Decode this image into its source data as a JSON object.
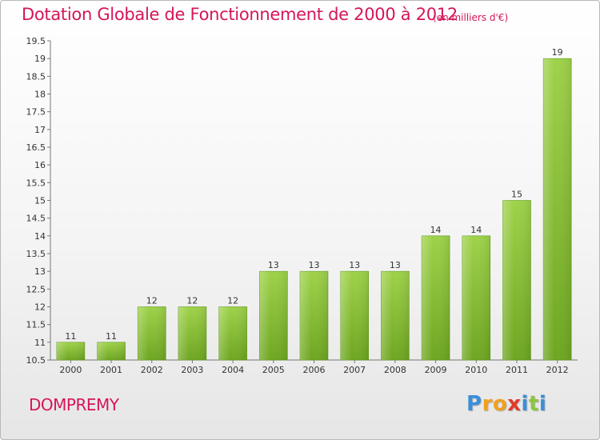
{
  "chart_data": {
    "type": "bar",
    "title": "Dotation Globale de Fonctionnement de 2000 à 2012",
    "subtitle": "(en milliers d'€)",
    "categories": [
      "2000",
      "2001",
      "2002",
      "2003",
      "2004",
      "2005",
      "2006",
      "2007",
      "2008",
      "2009",
      "2010",
      "2011",
      "2012"
    ],
    "values": [
      11,
      11,
      12,
      12,
      12,
      13,
      13,
      13,
      13,
      14,
      14,
      15,
      19
    ],
    "value_labels": [
      "11",
      "11",
      "12",
      "12",
      "12",
      "13",
      "13",
      "13",
      "13",
      "14",
      "14",
      "15",
      "19"
    ],
    "ylim": [
      10.5,
      19.5
    ],
    "yticks": [
      10.5,
      11,
      11.5,
      12,
      12.5,
      13,
      13.5,
      14,
      14.5,
      15,
      15.5,
      16,
      16.5,
      17,
      17.5,
      18,
      18.5,
      19,
      19.5
    ],
    "ytick_labels": [
      "10.5",
      "11",
      "11.5",
      "12",
      "12.5",
      "13",
      "13.5",
      "14",
      "14.5",
      "15",
      "15.5",
      "16",
      "16.5",
      "17",
      "17.5",
      "18",
      "18.5",
      "19",
      "19.5"
    ],
    "xlabel": "",
    "ylabel": "",
    "grid": false,
    "bar_color": "#8cc63f"
  },
  "footer": {
    "commune": "DOMPREMY",
    "logo_letters": [
      "P",
      "r",
      "o",
      "x",
      "i",
      "t",
      "i"
    ],
    "logo_colors": [
      "#3a8fd8",
      "#f0a020",
      "#f0a020",
      "#e23a2a",
      "#3a8fd8",
      "#8cc63f",
      "#3a8fd8"
    ]
  }
}
